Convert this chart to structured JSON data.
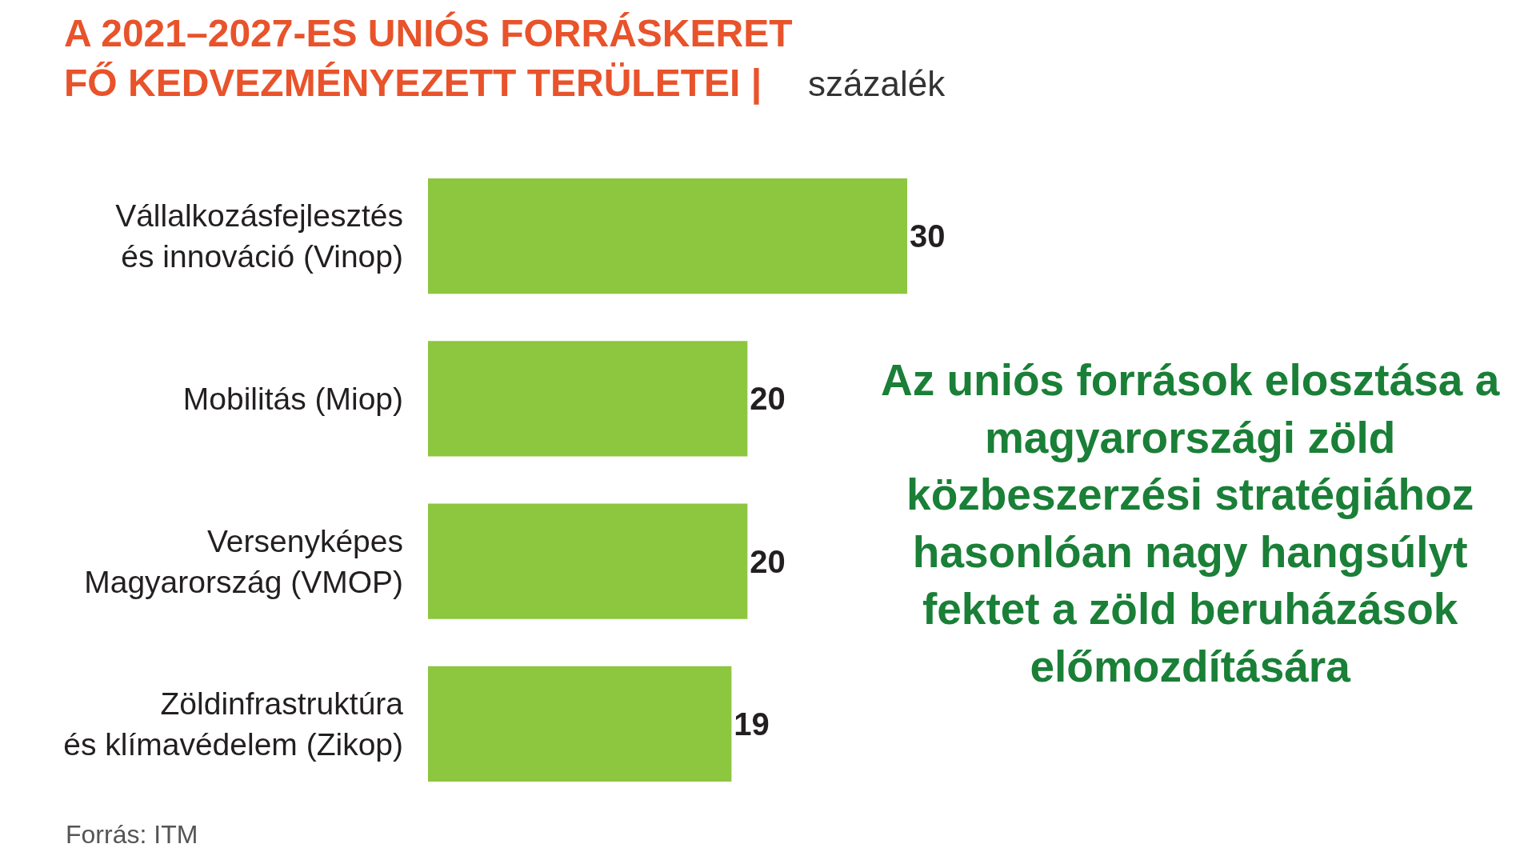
{
  "chart_data": {
    "type": "bar",
    "orientation": "horizontal",
    "title": "A 2021–2027-ES UNIÓS FORRÁSKERET\nFŐ KEDVEZMÉNYEZETT TERÜLETEI |",
    "subtitle": "százalék",
    "categories": [
      "Vállalkozásfejlesztés\nés innováció (Vinop)",
      "Mobilitás (Miop)",
      "Versenyképes\nMagyarország (VMOP)",
      "Zöldinfrastruktúra\nés klímavédelem (Zikop)"
    ],
    "values": [
      30,
      20,
      20,
      19
    ],
    "color": "#8dc63f",
    "data_labels": true,
    "tick_labels": "y",
    "annotations": [
      "Az uniós források elosztása a\nmagyarországi zöld\nközbeszerzési stratégiához\nhasonlóan nagy hangsúlyt\nfektet a zöld beruházások\nelőmozdítására",
      "Forrás: ITM"
    ]
  }
}
